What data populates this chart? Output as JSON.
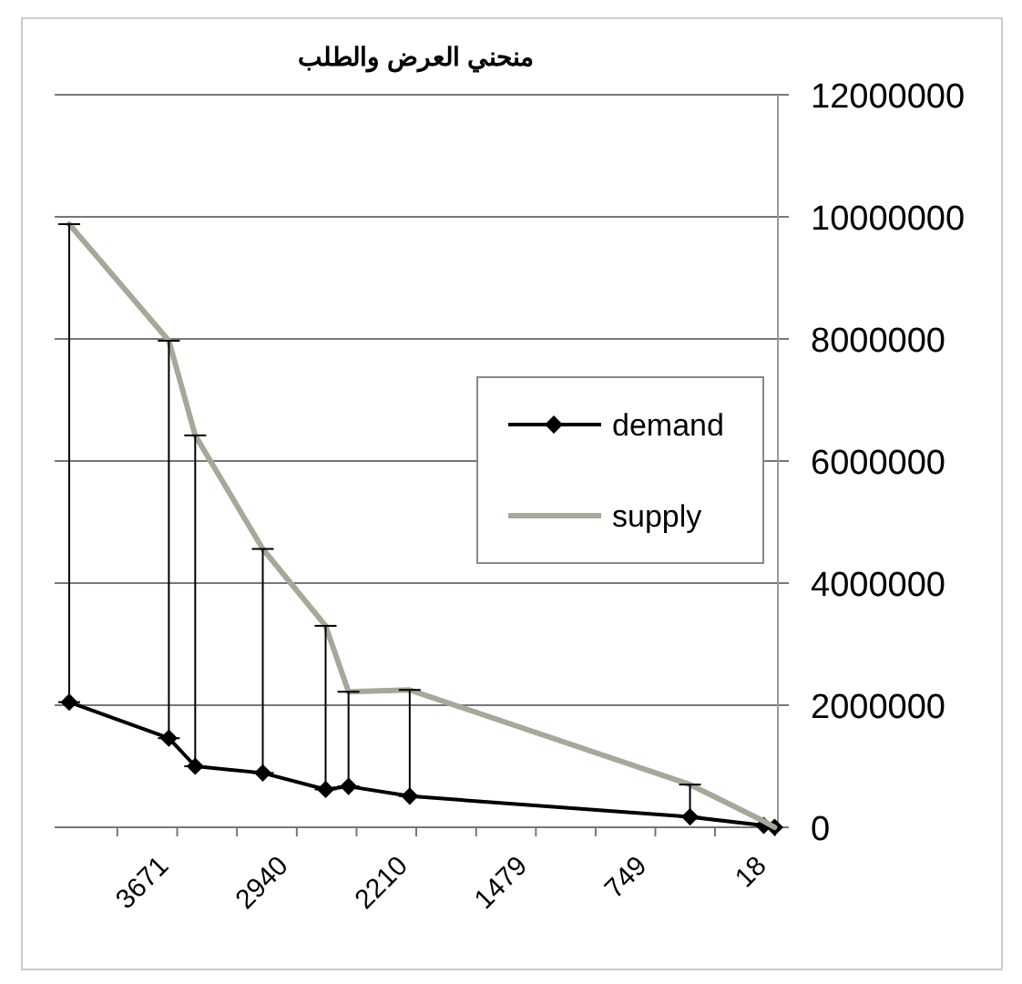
{
  "chart_data": {
    "type": "line",
    "title": "منحني العرض والطلب",
    "x": [
      4331,
      3722,
      3561,
      3148,
      2764,
      2624,
      2250,
      537,
      86,
      20
    ],
    "xlim": [
      4420,
      0
    ],
    "xticks": [
      {
        "value": 4037,
        "label": null
      },
      3671,
      {
        "value": 3306,
        "label": null
      },
      2940,
      {
        "value": 2575,
        "label": null
      },
      2210,
      {
        "value": 1844,
        "label": null
      },
      1479,
      {
        "value": 1114,
        "label": null
      },
      749,
      {
        "value": 384,
        "label": null
      },
      18
    ],
    "ylim": [
      0,
      12000000
    ],
    "yticks": [
      0,
      2000000,
      4000000,
      6000000,
      8000000,
      10000000,
      12000000
    ],
    "grid": "y",
    "legend": "right",
    "series": [
      {
        "name": "demand",
        "color": "#000000",
        "marker": "diamond",
        "values": [
          2050000,
          1460000,
          1000000,
          890000,
          620000,
          670000,
          510000,
          170000,
          30000,
          0
        ],
        "errors": [
          [
            2050000,
            9880000
          ],
          [
            1460000,
            7970000
          ],
          [
            1000000,
            6420000
          ],
          [
            890000,
            4560000
          ],
          [
            620000,
            3300000
          ],
          [
            670000,
            2220000
          ],
          [
            510000,
            2250000
          ],
          [
            170000,
            700000
          ],
          null,
          null
        ]
      },
      {
        "name": "supply",
        "color": "#a8a898",
        "marker": "none",
        "values": [
          9880000,
          7970000,
          6420000,
          4560000,
          3300000,
          2220000,
          2250000,
          700000,
          100000,
          0
        ]
      }
    ]
  }
}
